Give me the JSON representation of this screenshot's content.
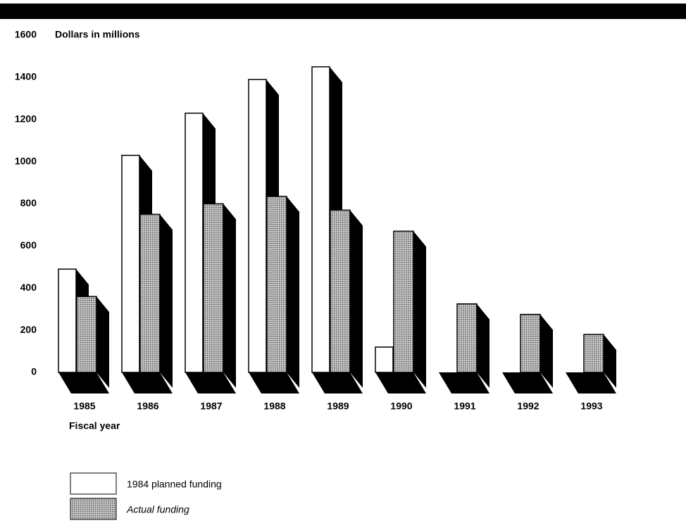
{
  "chart_data": {
    "type": "bar3d",
    "y_label": "Dollars in millions",
    "x_label": "Fiscal year",
    "categories": [
      "1985",
      "1986",
      "1987",
      "1988",
      "1989",
      "1990",
      "1991",
      "1992",
      "1993"
    ],
    "series": [
      {
        "name": "1984 planned funding",
        "color": "#ffffff",
        "values": [
          490,
          1030,
          1230,
          1390,
          1450,
          120,
          0,
          0,
          0
        ]
      },
      {
        "name": "Actual funding",
        "color": "#9a9a9a",
        "values": [
          360,
          750,
          800,
          835,
          770,
          670,
          325,
          275,
          180
        ]
      }
    ],
    "ylim": [
      0,
      1600
    ],
    "yticks": [
      0,
      200,
      400,
      600,
      800,
      1000,
      1200,
      1400,
      1600
    ]
  }
}
